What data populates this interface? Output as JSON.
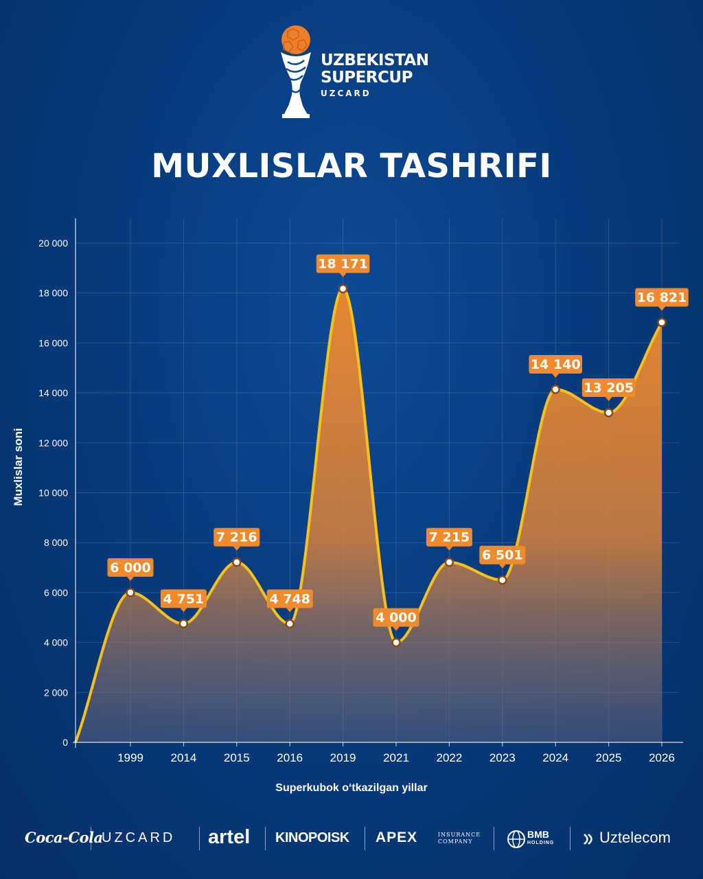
{
  "header": {
    "logo_line1": "UZBEKISTAN",
    "logo_line2": "SUPERCUP",
    "logo_line3": "UZCARD",
    "title": "MUXLISLAR TASHRIFI"
  },
  "colors": {
    "background": "#083b7e",
    "line": "#f6c11a",
    "fill": "#d9823a",
    "label_bg": "#f08a2c"
  },
  "chart_data": {
    "type": "area",
    "title": "MUXLISLAR TASHRIFI",
    "xlabel": "Superkubok o‘tkazilgan yillar",
    "ylabel": "Muxlislar soni",
    "categories": [
      "1999",
      "2014",
      "2015",
      "2016",
      "2019",
      "2021",
      "2022",
      "2023",
      "2024",
      "2025",
      "2026"
    ],
    "values": [
      6000,
      4751,
      7216,
      4748,
      18171,
      4000,
      7215,
      6501,
      14140,
      13205,
      16821
    ],
    "data_labels": [
      "6 000",
      "4 751",
      "7 216",
      "4 748",
      "18 171",
      "4 000",
      "7 215",
      "6 501",
      "14 140",
      "13 205",
      "16 821"
    ],
    "yticks": [
      "0",
      "2 000",
      "4 000",
      "6 000",
      "8 000",
      "10 000",
      "12 000",
      "14 000",
      "16 000",
      "18 000",
      "20 000"
    ],
    "ylim": [
      0,
      21000
    ],
    "grid": true,
    "smooth": true
  },
  "sponsors": [
    "Coca-Cola",
    "UZCARD",
    "artel",
    "KINOPOISK",
    "APEX",
    "INSURANCE",
    "COMPANY",
    "BMB",
    "HOLDING",
    "Uztelecom"
  ]
}
